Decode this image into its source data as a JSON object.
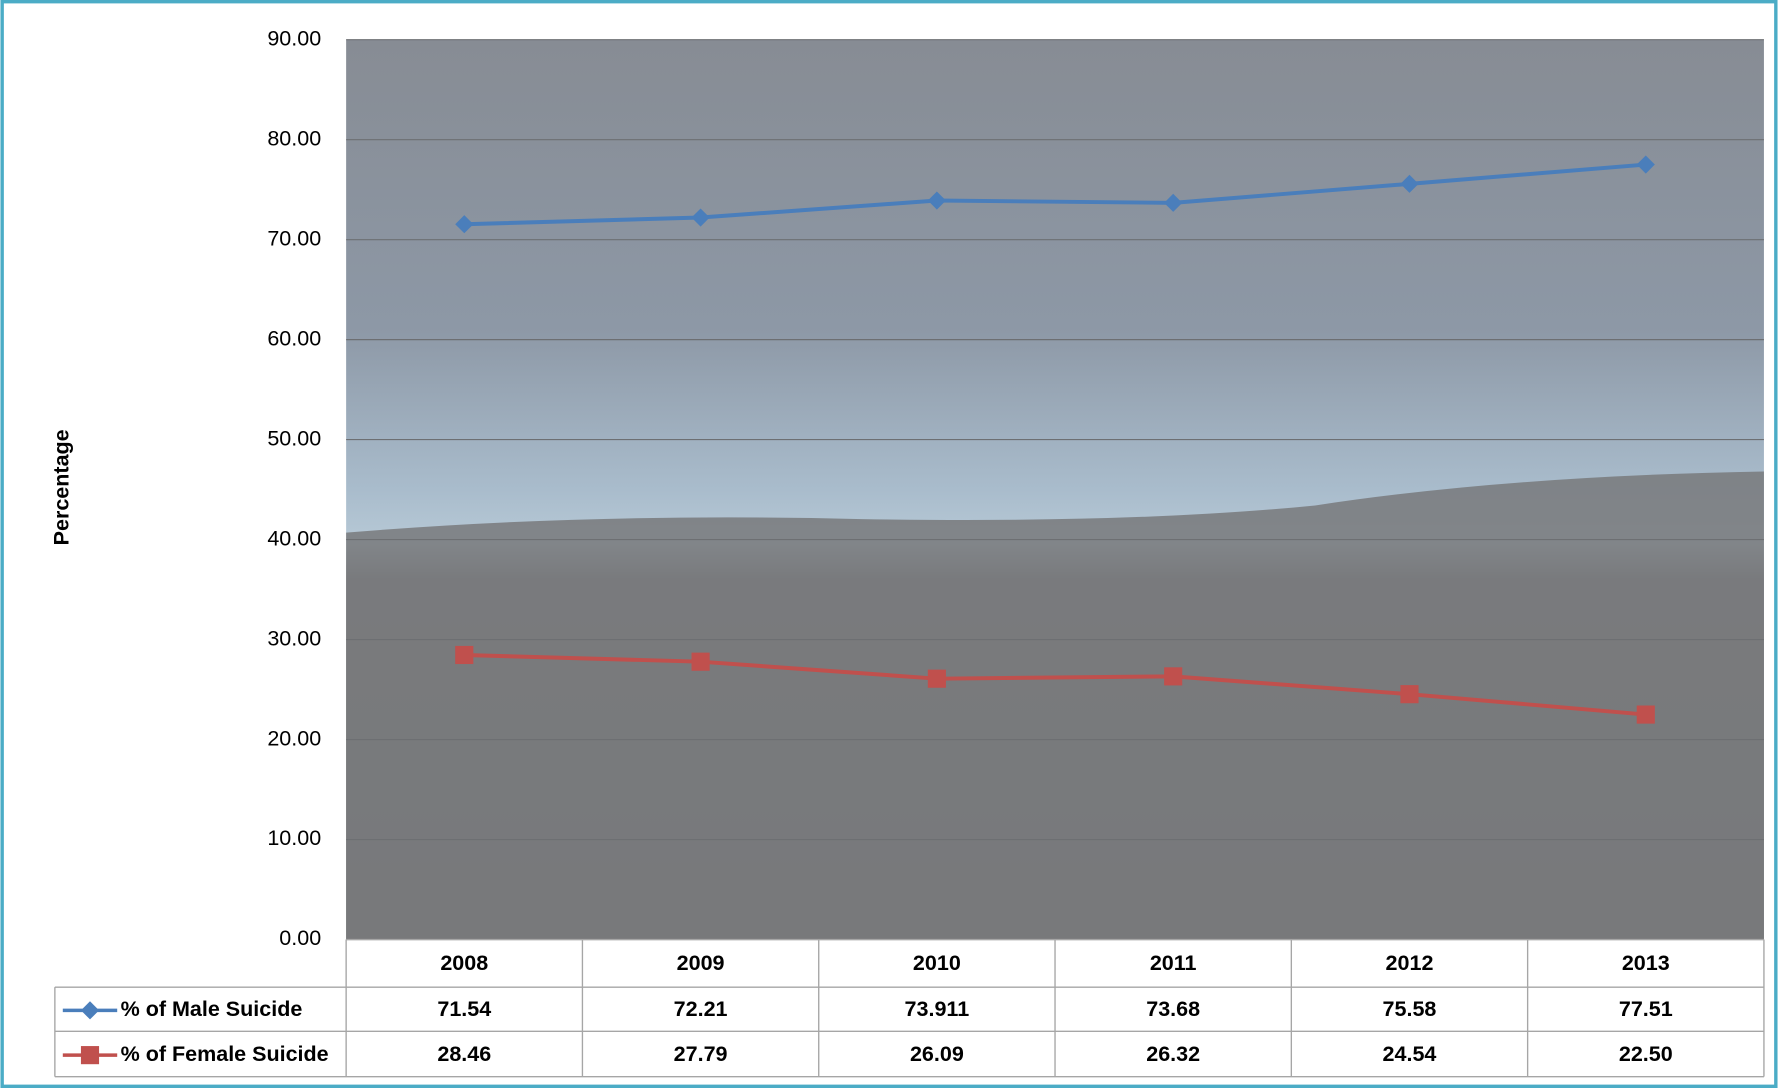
{
  "chart_data": {
    "type": "line",
    "y_label": "Percentage",
    "categories": [
      "2008",
      "2009",
      "2010",
      "2011",
      "2012",
      "2013"
    ],
    "series": [
      {
        "name": "% of Male Suicide",
        "color": "#4a7ebb",
        "marker": "diamond",
        "values": [
          71.54,
          72.21,
          73.911,
          73.68,
          75.58,
          77.51
        ],
        "value_labels": [
          "71.54",
          "72.21",
          "73.911",
          "73.68",
          "75.58",
          "77.51"
        ]
      },
      {
        "name": "% of Female Suicide",
        "color": "#c0504d",
        "marker": "square",
        "values": [
          28.46,
          27.79,
          26.09,
          26.32,
          24.54,
          22.5
        ],
        "value_labels": [
          "28.46",
          "27.79",
          "26.09",
          "26.32",
          "24.54",
          "22.50"
        ]
      }
    ],
    "ylim": [
      0,
      90
    ],
    "yticks": [
      {
        "value": 0,
        "label": "0.00"
      },
      {
        "value": 10,
        "label": "10.00"
      },
      {
        "value": 20,
        "label": "20.00"
      },
      {
        "value": 30,
        "label": "30.00"
      },
      {
        "value": 40,
        "label": "40.00"
      },
      {
        "value": 50,
        "label": "50.00"
      },
      {
        "value": 60,
        "label": "60.00"
      },
      {
        "value": 70,
        "label": "70.00"
      },
      {
        "value": 80,
        "label": "80.00"
      },
      {
        "value": 90,
        "label": "90.00"
      }
    ],
    "grid": true
  }
}
